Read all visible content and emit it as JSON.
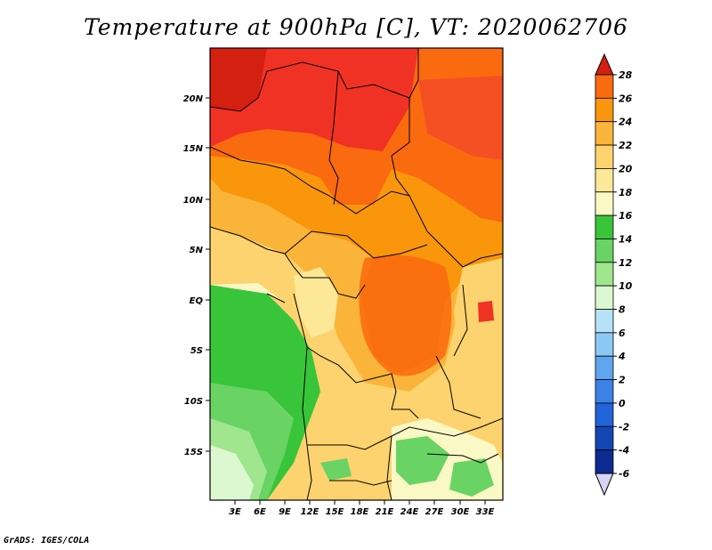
{
  "title": "Temperature at 900hPa [C], VT: 2020062706",
  "credit": "GrADS: IGES/COLA",
  "map": {
    "lat_labels": [
      "20N",
      "15N",
      "10N",
      "5N",
      "EQ",
      "5S",
      "10S",
      "15S"
    ],
    "lon_labels": [
      "3E",
      "6E",
      "9E",
      "12E",
      "15E",
      "18E",
      "21E",
      "24E",
      "27E",
      "30E",
      "33E"
    ]
  },
  "colorbar": {
    "labels": [
      "28",
      "26",
      "24",
      "22",
      "20",
      "18",
      "16",
      "14",
      "12",
      "10",
      "8",
      "6",
      "4",
      "2",
      "0",
      "-2",
      "-4",
      "-6"
    ],
    "colors": [
      "#f03224",
      "#fa6a0f",
      "#f9960b",
      "#fbb43a",
      "#fcd36e",
      "#fce896",
      "#faf8c4",
      "#38c539",
      "#69d364",
      "#a0e68f",
      "#dcf8d0",
      "#b6e2f8",
      "#8cc8f4",
      "#5ea6ee",
      "#3b82e6",
      "#2163d8",
      "#1446b4",
      "#0d2a90",
      "#140b6a"
    ],
    "top_arrow_color": "#d42010",
    "bottom_arrow_color": "#d7d4f4"
  }
}
